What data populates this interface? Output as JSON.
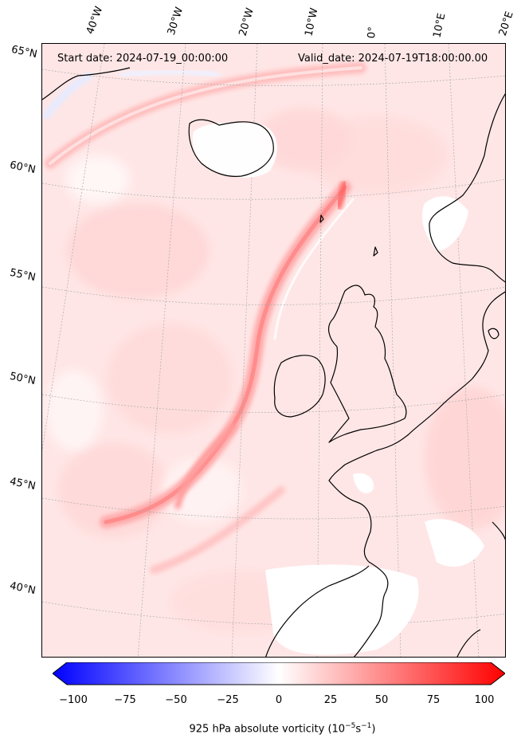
{
  "header": {
    "start_date": "Start date: 2024-07-19_00:00:00",
    "valid_date": "Valid_date: 2024-07-19T18:00:00.00"
  },
  "longitude_labels": [
    "40°W",
    "30°W",
    "20°W",
    "10°W",
    "0°",
    "10°E",
    "20°E"
  ],
  "latitude_labels": [
    "65°N",
    "60°N",
    "55°N",
    "50°N",
    "45°N",
    "40°N"
  ],
  "colorbar": {
    "label_prefix": "925 hPa absolute vorticity (10",
    "label_exp1": "−5",
    "label_mid": "s",
    "label_exp2": "−1",
    "label_suffix": ")",
    "min": -100,
    "max": 100,
    "ticks": [
      "−100",
      "−75",
      "−50",
      "−25",
      "0",
      "25",
      "50",
      "75",
      "100"
    ],
    "colors": {
      "low": "#0000ff",
      "mid": "#ffffff",
      "high": "#ff0000"
    }
  },
  "map_colors": {
    "background": "#ffe9e9",
    "coast": "#000000",
    "grid": "#999999"
  }
}
